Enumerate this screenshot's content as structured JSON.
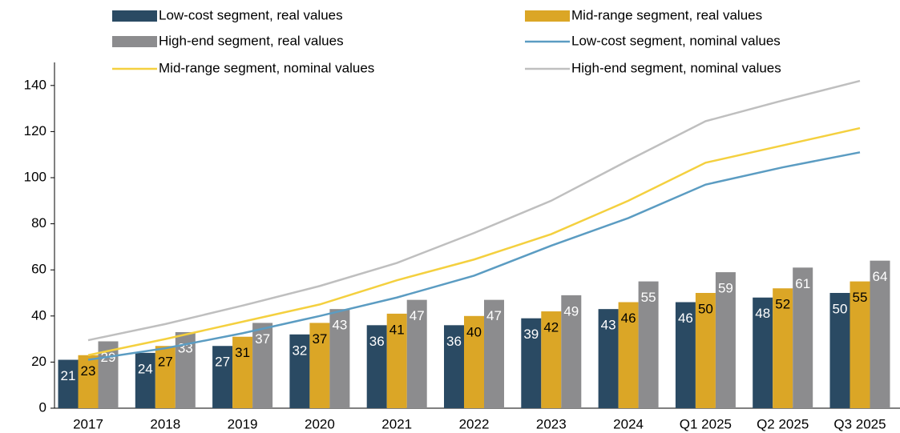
{
  "chart_data": {
    "type": "bar",
    "categories": [
      "2017",
      "2018",
      "2019",
      "2020",
      "2021",
      "2022",
      "2023",
      "2024",
      "Q1 2025",
      "Q2 2025",
      "Q3 2025"
    ],
    "series": [
      {
        "name": "Low-cost segment, real values",
        "type": "bar",
        "color": "#2a4a63",
        "label_color": "#ffffff",
        "values": [
          21,
          24,
          27,
          32,
          36,
          36,
          39,
          43,
          46,
          48,
          50
        ]
      },
      {
        "name": "Mid-range segment, real values",
        "type": "bar",
        "color": "#dba626",
        "label_color": "#000000",
        "values": [
          23,
          27,
          31,
          37,
          41,
          40,
          42,
          46,
          50,
          52,
          55
        ]
      },
      {
        "name": "High-end segment, real values",
        "type": "bar",
        "color": "#8c8c8e",
        "label_color": "#ffffff",
        "values": [
          29,
          33,
          37,
          43,
          47,
          47,
          49,
          55,
          59,
          61,
          64
        ]
      },
      {
        "name": "Low-cost segment, nominal values",
        "type": "line",
        "color": "#5b9cc2",
        "values": [
          21,
          26,
          32.5,
          40,
          48,
          57.5,
          70.5,
          82.5,
          97,
          104.5,
          111
        ]
      },
      {
        "name": "Mid-range segment, nominal values",
        "type": "line",
        "color": "#f4d03f",
        "values": [
          23,
          30,
          37.5,
          45,
          55.5,
          64.5,
          75.5,
          90,
          106.5,
          114,
          121.5
        ]
      },
      {
        "name": "High-end segment, nominal values",
        "type": "line",
        "color": "#bfbfbf",
        "values": [
          29.5,
          36.5,
          44.5,
          53,
          63,
          76,
          90,
          107.5,
          124.5,
          133.5,
          142
        ]
      }
    ],
    "ylim": [
      0,
      150
    ],
    "yticks": [
      0,
      20,
      40,
      60,
      80,
      100,
      120,
      140
    ]
  }
}
